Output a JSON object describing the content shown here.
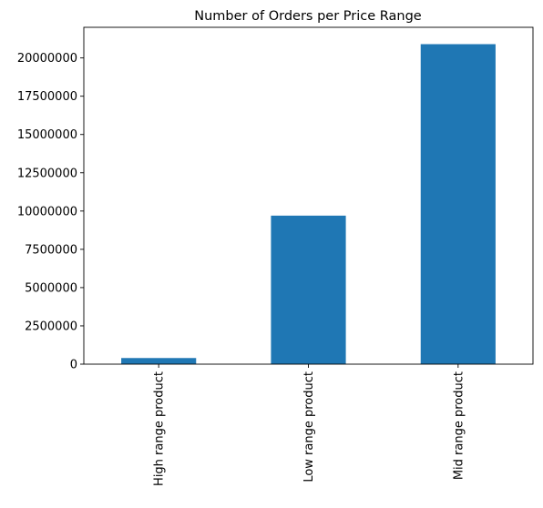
{
  "chart_data": {
    "type": "bar",
    "title": "Number of Orders per Price Range",
    "xlabel": "",
    "ylabel": "",
    "categories": [
      "High range product",
      "Low range product",
      "Mid range product"
    ],
    "values": [
      400000,
      9700000,
      20900000
    ],
    "ylim": [
      0,
      22000000
    ],
    "yticks": [
      0,
      2500000,
      5000000,
      7500000,
      10000000,
      12500000,
      15000000,
      17500000,
      20000000
    ],
    "ytick_labels": [
      "0",
      "2500000",
      "5000000",
      "7500000",
      "10000000",
      "12500000",
      "15000000",
      "17500000",
      "20000000"
    ],
    "grid": false,
    "legend": "none",
    "bar_color": "#1f77b4"
  }
}
